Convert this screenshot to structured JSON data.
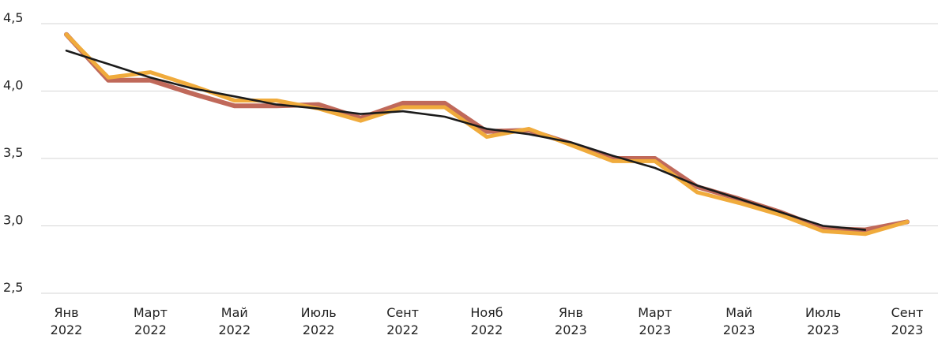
{
  "chart_data": {
    "type": "line",
    "title": "",
    "xlabel": "",
    "ylabel": "",
    "ylim": [
      2.5,
      4.5
    ],
    "yticks": [
      {
        "value": 2.5,
        "label": "2,5"
      },
      {
        "value": 3.0,
        "label": "3,0"
      },
      {
        "value": 3.5,
        "label": "3,5"
      },
      {
        "value": 4.0,
        "label": "4,0"
      },
      {
        "value": 4.5,
        "label": "4,5"
      }
    ],
    "x": [
      "2022-01",
      "2022-02",
      "2022-03",
      "2022-04",
      "2022-05",
      "2022-06",
      "2022-07",
      "2022-08",
      "2022-09",
      "2022-10",
      "2022-11",
      "2022-12",
      "2023-01",
      "2023-02",
      "2023-03",
      "2023-04",
      "2023-05",
      "2023-06",
      "2023-07",
      "2023-08",
      "2023-09"
    ],
    "xticks": [
      {
        "index": 0,
        "line1": "Янв",
        "line2": "2022"
      },
      {
        "index": 2,
        "line1": "Март",
        "line2": "2022"
      },
      {
        "index": 4,
        "line1": "Май",
        "line2": "2022"
      },
      {
        "index": 6,
        "line1": "Июль",
        "line2": "2022"
      },
      {
        "index": 8,
        "line1": "Сент",
        "line2": "2022"
      },
      {
        "index": 10,
        "line1": "Нояб",
        "line2": "2022"
      },
      {
        "index": 12,
        "line1": "Янв",
        "line2": "2023"
      },
      {
        "index": 14,
        "line1": "Март",
        "line2": "2023"
      },
      {
        "index": 16,
        "line1": "Май",
        "line2": "2023"
      },
      {
        "index": 18,
        "line1": "Июль",
        "line2": "2023"
      },
      {
        "index": 20,
        "line1": "Сент",
        "line2": "2023"
      }
    ],
    "grid": true,
    "series": [
      {
        "color": "#c0695a",
        "values": [
          4.42,
          4.08,
          4.08,
          3.98,
          3.89,
          3.89,
          3.9,
          3.8,
          3.91,
          3.91,
          3.7,
          3.71,
          3.61,
          3.5,
          3.5,
          3.29,
          3.2,
          3.1,
          2.98,
          2.97,
          3.03
        ]
      },
      {
        "color": "#f0ab3c",
        "values": [
          4.42,
          4.1,
          4.14,
          4.04,
          3.93,
          3.93,
          3.87,
          3.78,
          3.88,
          3.88,
          3.66,
          3.72,
          3.6,
          3.48,
          3.48,
          3.25,
          3.17,
          3.08,
          2.96,
          2.94,
          3.03
        ]
      },
      {
        "color": "#1b1b1b",
        "values": [
          4.3,
          4.2,
          4.1,
          4.02,
          3.96,
          3.9,
          3.87,
          3.83,
          3.85,
          3.81,
          3.72,
          3.68,
          3.62,
          3.52,
          3.43,
          3.3,
          3.2,
          3.1,
          3.0,
          2.97,
          null
        ]
      }
    ]
  }
}
